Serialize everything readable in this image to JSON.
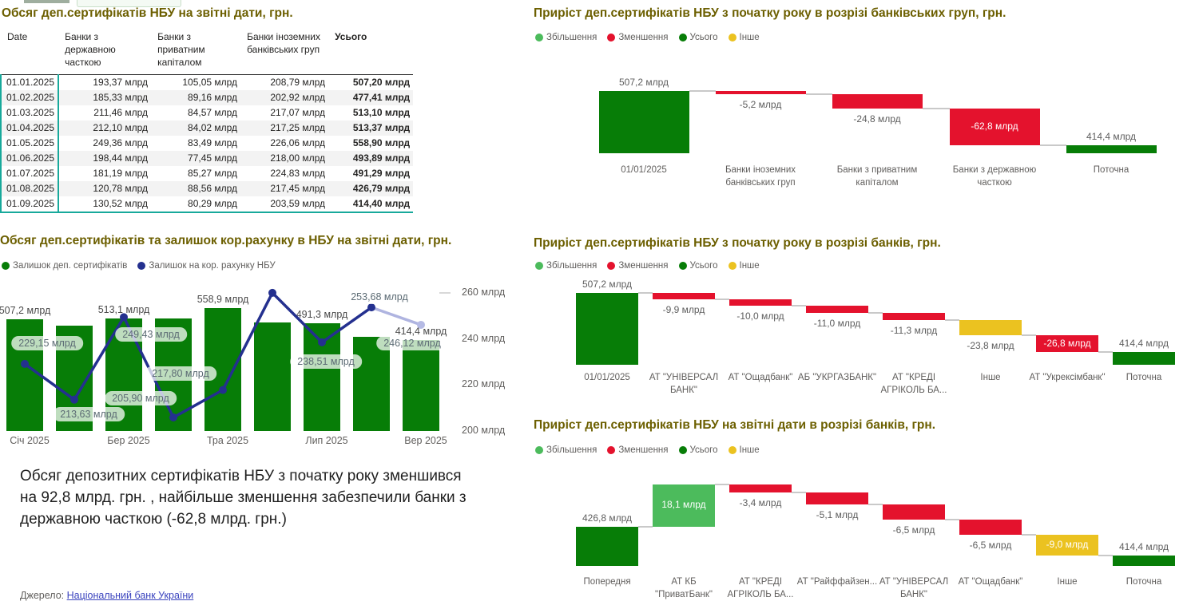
{
  "table_card": {
    "title": "Обсяг деп.сертифікатів НБУ на звітні дати, грн.",
    "columns": [
      "Date",
      "Банки з державною часткою",
      "Банки з приватним капіталом",
      "Банки іноземних банківських груп",
      "Усього"
    ],
    "rows": [
      [
        "01.01.2025",
        "193,37 млрд",
        "105,05 млрд",
        "208,79 млрд",
        "507,20 млрд"
      ],
      [
        "01.02.2025",
        "185,33 млрд",
        "89,16 млрд",
        "202,92 млрд",
        "477,41 млрд"
      ],
      [
        "01.03.2025",
        "211,46 млрд",
        "84,57 млрд",
        "217,07 млрд",
        "513,10 млрд"
      ],
      [
        "01.04.2025",
        "212,10 млрд",
        "84,02 млрд",
        "217,25 млрд",
        "513,37 млрд"
      ],
      [
        "01.05.2025",
        "249,36 млрд",
        "83,49 млрд",
        "226,06 млрд",
        "558,90 млрд"
      ],
      [
        "01.06.2025",
        "198,44 млрд",
        "77,45 млрд",
        "218,00 млрд",
        "493,89 млрд"
      ],
      [
        "01.07.2025",
        "181,19 млрд",
        "85,27 млрд",
        "224,83 млрд",
        "491,29 млрд"
      ],
      [
        "01.08.2025",
        "120,78 млрд",
        "88,56 млрд",
        "217,45 млрд",
        "426,79 млрд"
      ],
      [
        "01.09.2025",
        "130,52 млрд",
        "80,29 млрд",
        "203,59 млрд",
        "414,40 млрд"
      ]
    ]
  },
  "summary_text": "Обсяг депозитних сертифікатів НБУ з початку року зменшився на 92,8 млрд. грн. , найбільше зменшення забезпечили банки з державною часткою (-62,8 млрд. грн.)",
  "source": {
    "label": "Джерело: ",
    "link_text": "Національний банк України"
  },
  "colors": {
    "total_green": "#077D07",
    "increase_green": "#4CBB5C",
    "decrease_red": "#E4122D",
    "other_yellow": "#EBC220",
    "line_navy": "#24308F",
    "line_navy_faded": "#AFB4E0",
    "title_olive": "#6C5F00",
    "teal": "#18A99B",
    "label_gray": "#605E5C"
  },
  "chart_data": [
    {
      "id": "combo",
      "type": "bar+line",
      "title": "Обсяг деп.сертифікатів  та залишок кор.рахунку в НБУ на звітні дати, грн.",
      "legend": [
        {
          "label": "Залишок деп. сертифікатів",
          "color": "#077D07"
        },
        {
          "label": "Залишок на кор. рахунку НБУ",
          "color": "#24308F"
        }
      ],
      "x_tick_labels": [
        "Січ 2025",
        "Бер 2025",
        "Тра 2025",
        "Лип 2025",
        "Вер 2025"
      ],
      "x_tick_slots": [
        0,
        2,
        4,
        6,
        8
      ],
      "series": [
        {
          "name": "Залишок деп. сертифікатів",
          "type": "bar",
          "values": [
            507.2,
            477.41,
            513.1,
            513.37,
            558.9,
            493.89,
            491.3,
            426.79,
            414.4
          ],
          "labels": [
            "507,2 млрд",
            null,
            "513,1 млрд",
            null,
            "558,9 млрд",
            null,
            "491,3 млрд",
            null,
            "414,4 млрд"
          ]
        },
        {
          "name": "Залишок на кор. рахунку НБУ",
          "type": "line",
          "values": [
            229.15,
            213.63,
            249.43,
            205.9,
            217.8,
            260.0,
            238.51,
            253.68,
            246.12
          ],
          "labels": [
            "229,15 млрд",
            "213,63 млрд",
            "249,43 млрд",
            "205,90 млрд",
            "217,80 млрд",
            null,
            "238,51 млрд",
            "253,68 млрд",
            "246,12 млрд"
          ]
        }
      ],
      "y_axis_right": {
        "ticks": [
          200,
          220,
          240,
          260
        ],
        "tick_labels": [
          "200 млрд",
          "220 млрд",
          "240 млрд",
          "260 млрд"
        ],
        "range": [
          200,
          262
        ]
      },
      "bar_axis_max": 560
    },
    {
      "id": "waterfall-groups",
      "type": "waterfall",
      "title": "Приріст деп.сертифікатів НБУ з початку року  в розрізі банківських груп, грн.",
      "legend": [
        {
          "label": "Збільшення",
          "color": "#4CBB5C"
        },
        {
          "label": "Зменшення",
          "color": "#E4122D"
        },
        {
          "label": "Усього",
          "color": "#077D07"
        },
        {
          "label": "Інше",
          "color": "#EBC220"
        }
      ],
      "axis_min": 400,
      "steps": [
        {
          "category": "01/01/2025",
          "value": 507.2,
          "kind": "total",
          "label": "507,2 млрд",
          "label_pos": "above"
        },
        {
          "category": "Банки іноземних банківських груп",
          "value": -5.2,
          "kind": "decrease",
          "label": "-5,2 млрд",
          "label_pos": "below"
        },
        {
          "category": "Банки з приватним капіталом",
          "value": -24.8,
          "kind": "decrease",
          "label": "-24,8 млрд",
          "label_pos": "below"
        },
        {
          "category": "Банки з державною часткою",
          "value": -62.8,
          "kind": "decrease",
          "label": "-62,8 млрд",
          "label_pos": "inside"
        },
        {
          "category": "Поточна",
          "value": 414.4,
          "kind": "total",
          "label": "414,4 млрд",
          "label_pos": "above"
        }
      ]
    },
    {
      "id": "waterfall-banks-ytd",
      "type": "waterfall",
      "title": "Приріст деп.сертифікатів НБУ з початку року  в розрізі банків, грн.",
      "legend": [
        {
          "label": "Збільшення",
          "color": "#4CBB5C"
        },
        {
          "label": "Зменшення",
          "color": "#E4122D"
        },
        {
          "label": "Усього",
          "color": "#077D07"
        },
        {
          "label": "Інше",
          "color": "#EBC220"
        }
      ],
      "axis_min": 395,
      "steps": [
        {
          "category": "01/01/2025",
          "value": 507.2,
          "kind": "total",
          "label": "507,2 млрд",
          "label_pos": "above"
        },
        {
          "category": "АТ \"УНІВЕРСАЛ БАНК\"",
          "value": -9.9,
          "kind": "decrease",
          "label": "-9,9 млрд",
          "label_pos": "below"
        },
        {
          "category": "АТ \"Ощадбанк\"",
          "value": -10.0,
          "kind": "decrease",
          "label": "-10,0 млрд",
          "label_pos": "below"
        },
        {
          "category": "АБ \"УКРГАЗБАНК\"",
          "value": -11.0,
          "kind": "decrease",
          "label": "-11,0 млрд",
          "label_pos": "below"
        },
        {
          "category": "АТ \"КРЕДІ АГРІКОЛЬ БА...",
          "value": -11.3,
          "kind": "decrease",
          "label": "-11,3 млрд",
          "label_pos": "below"
        },
        {
          "category": "Інше",
          "value": -23.8,
          "kind": "other",
          "label": "-23,8 млрд",
          "label_pos": "below"
        },
        {
          "category": "АТ \"Укрексімбанк\"",
          "value": -26.8,
          "kind": "decrease",
          "label": "-26,8 млрд",
          "label_pos": "inside"
        },
        {
          "category": "Поточна",
          "value": 414.4,
          "kind": "total",
          "label": "414,4 млрд",
          "label_pos": "above"
        }
      ]
    },
    {
      "id": "waterfall-banks-period",
      "type": "waterfall",
      "title": "Приріст деп.сертифікатів НБУ на звітні дати в розрізі банків, грн.",
      "legend": [
        {
          "label": "Збільшення",
          "color": "#4CBB5C"
        },
        {
          "label": "Зменшення",
          "color": "#E4122D"
        },
        {
          "label": "Усього",
          "color": "#077D07"
        },
        {
          "label": "Інше",
          "color": "#EBC220"
        }
      ],
      "axis_min": 410,
      "steps": [
        {
          "category": "Попередня",
          "value": 426.8,
          "kind": "total",
          "label": "426,8 млрд",
          "label_pos": "above"
        },
        {
          "category": "АТ КБ \"ПриватБанк\"",
          "value": 18.1,
          "kind": "increase",
          "label": "18,1 млрд",
          "label_pos": "inside"
        },
        {
          "category": "АТ \"КРЕДІ АГРІКОЛЬ БА...",
          "value": -3.4,
          "kind": "decrease",
          "label": "-3,4 млрд",
          "label_pos": "below"
        },
        {
          "category": "АТ \"Райффайзен...",
          "value": -5.1,
          "kind": "decrease",
          "label": "-5,1 млрд",
          "label_pos": "below"
        },
        {
          "category": "АТ \"УНІВЕРСАЛ БАНК\"",
          "value": -6.5,
          "kind": "decrease",
          "label": "-6,5 млрд",
          "label_pos": "below"
        },
        {
          "category": "АТ \"Ощадбанк\"",
          "value": -6.5,
          "kind": "decrease",
          "label": "-6,5 млрд",
          "label_pos": "below"
        },
        {
          "category": "Інше",
          "value": -9.0,
          "kind": "other",
          "label": "-9,0 млрд",
          "label_pos": "inside"
        },
        {
          "category": "Поточна",
          "value": 414.4,
          "kind": "total",
          "label": "414,4 млрд",
          "label_pos": "above"
        }
      ]
    }
  ]
}
